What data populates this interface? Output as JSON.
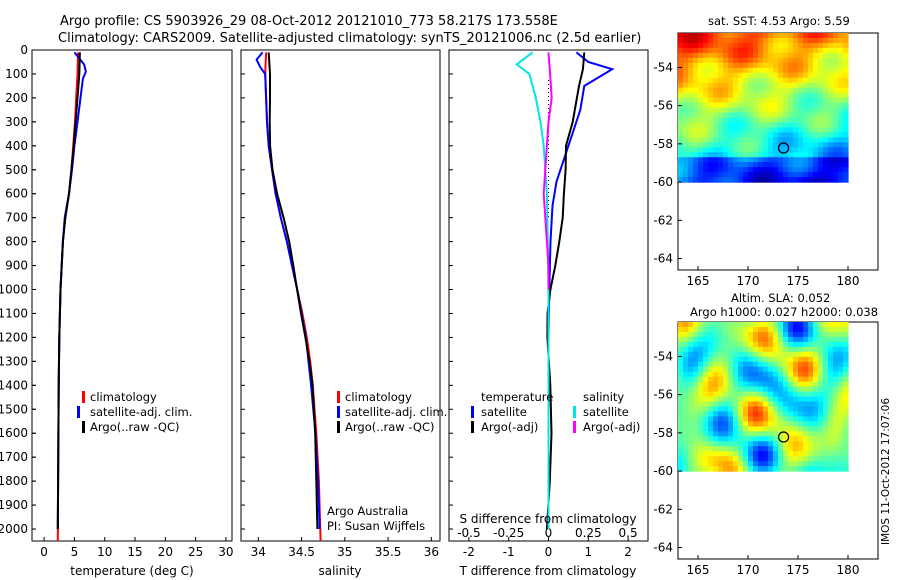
{
  "header": {
    "line1": "Argo profile: CS 5903926_29 08-Oct-2012 20121010_773 58.217S 173.558E",
    "line2": "Climatology: CARS2009. Satellite-adjusted climatology: synTS_20121006.nc (2.5d earlier)"
  },
  "chart_data": [
    {
      "type": "line",
      "panel": "temperature",
      "xlabel": "temperature (deg C)",
      "xlim": [
        -2,
        31
      ],
      "ylim": [
        2050,
        0
      ],
      "y_ticks": [
        0,
        100,
        200,
        300,
        400,
        500,
        600,
        700,
        800,
        900,
        1000,
        1100,
        1200,
        1300,
        1400,
        1500,
        1600,
        1700,
        1800,
        1900,
        2000
      ],
      "x_ticks": [
        0,
        5,
        10,
        15,
        20,
        25,
        30
      ],
      "legend": [
        "climatology",
        "satellite-adj. clim.",
        "Argo(..raw -QC)"
      ],
      "series": [
        {
          "name": "climatology",
          "color": "#ff0000",
          "pressure": [
            10,
            100,
            200,
            300,
            400,
            500,
            600,
            700,
            800,
            900,
            1000,
            1200,
            1400,
            1600,
            1800,
            2050
          ],
          "values": [
            5.6,
            5.5,
            5.3,
            5.1,
            4.8,
            4.5,
            4.1,
            3.5,
            3.1,
            2.9,
            2.7,
            2.5,
            2.4,
            2.35,
            2.3,
            2.25
          ]
        },
        {
          "name": "satellite-adj. clim.",
          "color": "#0000ff",
          "pressure": [
            10,
            60,
            90,
            120,
            200,
            300,
            400,
            500,
            600,
            700,
            800,
            900,
            1000,
            1200,
            1400,
            1600,
            1800,
            2000
          ],
          "values": [
            5.0,
            6.6,
            6.9,
            6.4,
            6.0,
            5.5,
            5.0,
            4.6,
            4.1,
            3.4,
            3.1,
            2.9,
            2.7,
            2.5,
            2.4,
            2.35,
            2.3,
            2.25
          ]
        },
        {
          "name": "Argo(..raw -QC)",
          "color": "#000000",
          "pressure": [
            10,
            100,
            200,
            300,
            400,
            500,
            600,
            700,
            800,
            900,
            1000,
            1200,
            1400,
            1600,
            1800,
            2000
          ],
          "values": [
            5.9,
            5.8,
            5.5,
            5.2,
            4.9,
            4.5,
            4.1,
            3.5,
            3.1,
            2.9,
            2.7,
            2.5,
            2.4,
            2.35,
            2.3,
            2.25
          ]
        }
      ]
    },
    {
      "type": "line",
      "panel": "salinity",
      "xlabel": "salinity",
      "xlim": [
        33.8,
        36.1
      ],
      "ylim": [
        2050,
        0
      ],
      "x_ticks": [
        34,
        34.5,
        35,
        35.5,
        36
      ],
      "x_tick_labels": [
        "34",
        "34.5",
        "35",
        "35.5",
        "36"
      ],
      "legend": [
        "climatology",
        "satellite-adj. clim.",
        "Argo(..raw -QC)"
      ],
      "annotation": [
        "Argo Australia",
        "PI: Susan Wijffels"
      ],
      "series": [
        {
          "name": "climatology",
          "color": "#ff0000",
          "pressure": [
            10,
            100,
            200,
            300,
            400,
            500,
            600,
            700,
            800,
            900,
            1000,
            1100,
            1200,
            1300,
            1400,
            1600,
            1800,
            2050
          ],
          "values": [
            34.09,
            34.08,
            34.09,
            34.1,
            34.12,
            34.16,
            34.2,
            34.26,
            34.33,
            34.39,
            34.45,
            34.51,
            34.56,
            34.6,
            34.63,
            34.67,
            34.7,
            34.72
          ]
        },
        {
          "name": "satellite-adj. clim.",
          "color": "#0000ff",
          "pressure": [
            10,
            40,
            70,
            100,
            200,
            300,
            400,
            500,
            600,
            700,
            800,
            900,
            1000,
            1100,
            1200,
            1300,
            1400,
            1600,
            1800,
            2000
          ],
          "values": [
            34.05,
            33.98,
            34.02,
            34.08,
            34.09,
            34.1,
            34.12,
            34.16,
            34.2,
            34.26,
            34.33,
            34.39,
            34.45,
            34.5,
            34.55,
            34.58,
            34.61,
            34.66,
            34.69,
            34.71
          ]
        },
        {
          "name": "Argo(..raw -QC)",
          "color": "#000000",
          "pressure": [
            10,
            100,
            200,
            300,
            400,
            500,
            600,
            700,
            800,
            900,
            1000,
            1100,
            1200,
            1300,
            1400,
            1600,
            1800,
            2000
          ],
          "values": [
            34.12,
            34.12,
            34.12,
            34.13,
            34.15,
            34.18,
            34.22,
            34.28,
            34.34,
            34.4,
            34.46,
            34.51,
            34.55,
            34.58,
            34.61,
            34.65,
            34.68,
            34.7
          ]
        }
      ]
    },
    {
      "type": "line",
      "panel": "difference",
      "xlabel": "T difference from climatology",
      "xlabel2": "S difference from climatology",
      "xlim": [
        -2.5,
        2.5
      ],
      "ylim": [
        2050,
        0
      ],
      "x_ticks": [
        -2,
        -1,
        0,
        1,
        2
      ],
      "x2_ticks": [
        -0.5,
        -0.25,
        0,
        0.25,
        0.5
      ],
      "x2_tick_labels": [
        "-0.5",
        "-0.25",
        "0",
        "0.25",
        "0.5"
      ],
      "legend_headers": [
        "temperature",
        "salinity"
      ],
      "legend": [
        "satellite",
        "Argo(-adj)",
        "satellite",
        "Argo(-adj)"
      ],
      "series": [
        {
          "name": "satellite",
          "group": "temperature",
          "color": "#0000ff",
          "pressure": [
            10,
            50,
            80,
            100,
            150,
            250,
            350,
            450,
            550,
            650,
            800,
            1000,
            1200,
            1400,
            1600,
            1800,
            2000
          ],
          "values": [
            0.7,
            1.0,
            1.6,
            1.4,
            0.9,
            0.8,
            0.6,
            0.4,
            0.2,
            0.1,
            0.05,
            0.02,
            0.0,
            0.0,
            0.0,
            0.0,
            0.0
          ]
        },
        {
          "name": "Argo(-adj)",
          "group": "temperature",
          "color": "#000000",
          "pressure": [
            10,
            80,
            150,
            300,
            400,
            500,
            600,
            700,
            800,
            900,
            1000,
            1100,
            1200,
            1400,
            1600,
            1800,
            2000
          ],
          "values": [
            0.9,
            0.8,
            0.7,
            0.6,
            0.5,
            0.5,
            0.4,
            0.3,
            0.2,
            0.15,
            0.1,
            0.05,
            0.0,
            0.0,
            0.0,
            0.0,
            0.0
          ]
        },
        {
          "name": "satellite",
          "group": "salinity",
          "color": "#00e5e5",
          "pressure": [
            10,
            60,
            100,
            200,
            300,
            400,
            500,
            600,
            800,
            1000,
            1200,
            1400,
            1600,
            1800,
            2000
          ],
          "values": [
            -0.1,
            -0.2,
            -0.12,
            -0.08,
            -0.05,
            -0.03,
            -0.02,
            -0.01,
            -0.005,
            0.0,
            0.0,
            0.0,
            0.0,
            0.0,
            0.0
          ]
        },
        {
          "name": "Argo(-adj)",
          "group": "salinity",
          "color": "#ff00ff",
          "pressure": [
            10,
            100,
            200,
            300,
            400,
            500,
            600,
            700,
            800,
            900,
            1000
          ],
          "values": [
            0.0,
            0.01,
            0.02,
            0.0,
            -0.01,
            -0.02,
            -0.03,
            -0.02,
            -0.01,
            0.0,
            0.0
          ]
        }
      ]
    }
  ],
  "maps": [
    {
      "title": "sat. SST: 4.53 Argo: 5.59",
      "y_ticks": [
        "-54",
        "-56",
        "-58",
        "-60",
        "-62",
        "-64"
      ],
      "x_ticks": [
        "165",
        "170",
        "175",
        "180"
      ]
    },
    {
      "title1": "Altim. SLA: 0.052",
      "title2": "Argo h1000: 0.027 h2000: 0.038",
      "y_ticks": [
        "-54",
        "-56",
        "-58",
        "-60",
        "-62",
        "-64"
      ],
      "x_ticks": [
        "165",
        "170",
        "175",
        "180"
      ]
    }
  ],
  "side_label": "IMOS 11-Oct-2012 17:07:06"
}
